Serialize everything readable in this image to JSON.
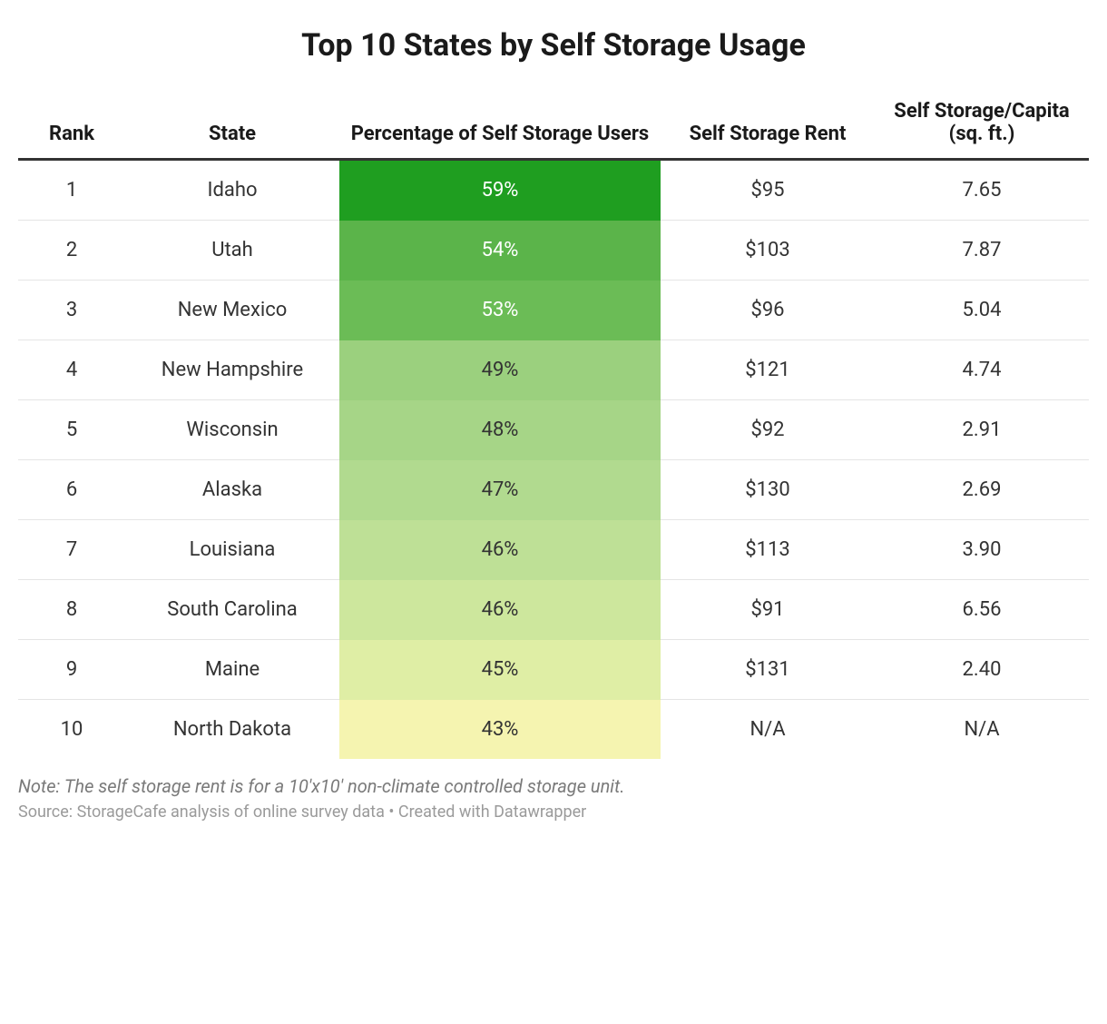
{
  "title": "Top 10 States by Self Storage Usage",
  "table": {
    "type": "table",
    "columns": [
      {
        "key": "rank",
        "label": "Rank"
      },
      {
        "key": "state",
        "label": "State"
      },
      {
        "key": "pct",
        "label": "Percentage of Self Storage Users"
      },
      {
        "key": "rent",
        "label": "Self Storage Rent"
      },
      {
        "key": "capita",
        "label": "Self Storage/Capita (sq. ft.)"
      }
    ],
    "rows": [
      {
        "rank": "1",
        "state": "Idaho",
        "pct": "59%",
        "rent": "$95",
        "capita": "7.65",
        "pct_bg": "#1f9e20",
        "pct_fg": "#ffffff"
      },
      {
        "rank": "2",
        "state": "Utah",
        "pct": "54%",
        "rent": "$103",
        "capita": "7.87",
        "pct_bg": "#5bb44a",
        "pct_fg": "#ffffff"
      },
      {
        "rank": "3",
        "state": "New Mexico",
        "pct": "53%",
        "rent": "$96",
        "capita": "5.04",
        "pct_bg": "#6bbc56",
        "pct_fg": "#ffffff"
      },
      {
        "rank": "4",
        "state": "New Hampshire",
        "pct": "49%",
        "rent": "$121",
        "capita": "4.74",
        "pct_bg": "#9bd07e",
        "pct_fg": "#333333"
      },
      {
        "rank": "5",
        "state": "Wisconsin",
        "pct": "48%",
        "rent": "$92",
        "capita": "2.91",
        "pct_bg": "#a6d587",
        "pct_fg": "#333333"
      },
      {
        "rank": "6",
        "state": "Alaska",
        "pct": "47%",
        "rent": "$130",
        "capita": "2.69",
        "pct_bg": "#b1da8f",
        "pct_fg": "#333333"
      },
      {
        "rank": "7",
        "state": "Louisiana",
        "pct": "46%",
        "rent": "$113",
        "capita": "3.90",
        "pct_bg": "#bee096",
        "pct_fg": "#333333"
      },
      {
        "rank": "8",
        "state": "South Carolina",
        "pct": "46%",
        "rent": "$91",
        "capita": "6.56",
        "pct_bg": "#cde79d",
        "pct_fg": "#333333"
      },
      {
        "rank": "9",
        "state": "Maine",
        "pct": "45%",
        "rent": "$131",
        "capita": "2.40",
        "pct_bg": "#dfeea5",
        "pct_fg": "#333333"
      },
      {
        "rank": "10",
        "state": "North Dakota",
        "pct": "43%",
        "rent": "N/A",
        "capita": "N/A",
        "pct_bg": "#f5f4b0",
        "pct_fg": "#333333"
      }
    ],
    "header_fontsize": 22,
    "cell_fontsize": 22,
    "header_border_color": "#333333",
    "row_border_color": "#e5e5e5",
    "text_color": "#333333",
    "background_color": "#ffffff"
  },
  "note": "Note: The self storage rent is for a 10'x10' non-climate controlled storage unit.",
  "source": "Source: StorageCafe analysis of online survey data • Created with Datawrapper"
}
